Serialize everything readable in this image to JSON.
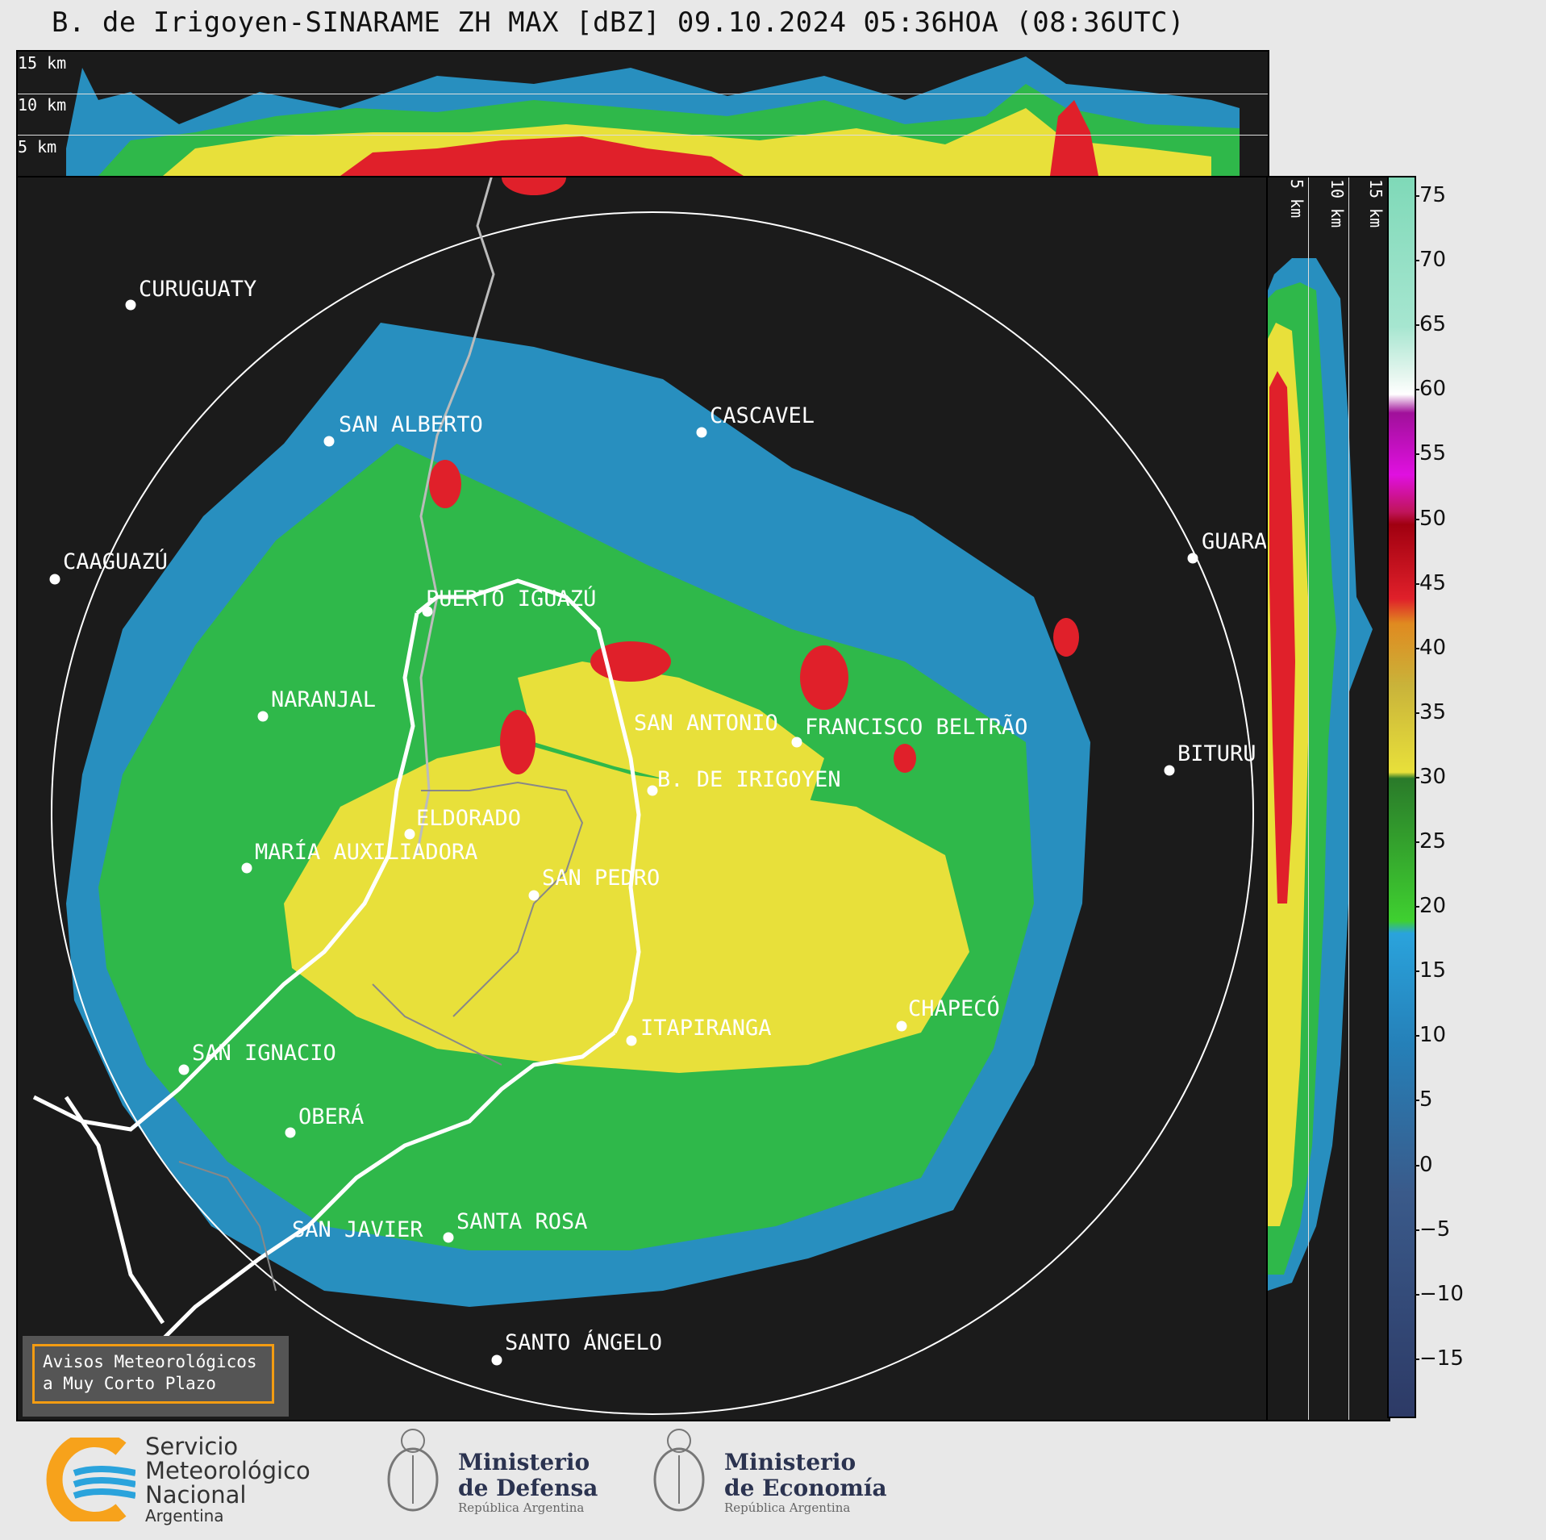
{
  "title": "B. de Irigoyen-SINARAME ZH MAX [dBZ] 09.10.2024 05:36HOA (08:36UTC)",
  "top_panel": {
    "altitudes": [
      "15 km",
      "10 km",
      "5 km"
    ]
  },
  "side_panel": {
    "altitudes": [
      "5 km",
      "10 km",
      "15 km"
    ]
  },
  "colorbar": {
    "ticks": [
      "75",
      "70",
      "65",
      "60",
      "55",
      "50",
      "45",
      "40",
      "35",
      "30",
      "25",
      "20",
      "15",
      "10",
      "5",
      "0",
      "−5",
      "−10",
      "−15"
    ]
  },
  "cities": [
    {
      "name": "CURUGUATY"
    },
    {
      "name": "SAN ALBERTO"
    },
    {
      "name": "CASCAVEL"
    },
    {
      "name": "CAAGUAZÚ"
    },
    {
      "name": "GUARA"
    },
    {
      "name": "PUERTO IGUAZÚ"
    },
    {
      "name": "NARANJAL"
    },
    {
      "name": "SAN ANTONIO"
    },
    {
      "name": "FRANCISCO BELTRÃO"
    },
    {
      "name": "BITURU"
    },
    {
      "name": "B. DE IRIGOYEN"
    },
    {
      "name": "ELDORADO"
    },
    {
      "name": "MARÍA AUXILIADORA"
    },
    {
      "name": "SAN PEDRO"
    },
    {
      "name": "ITAPIRANGA"
    },
    {
      "name": "CHAPECÓ"
    },
    {
      "name": "SAN IGNACIO"
    },
    {
      "name": "OBERÁ"
    },
    {
      "name": "SAN JAVIER"
    },
    {
      "name": "SANTA ROSA"
    },
    {
      "name": "SANTO ÁNGELO"
    }
  ],
  "warning": {
    "line1": "Avisos Meteorológicos",
    "line2": "a Muy Corto Plazo"
  },
  "footer": {
    "smn": {
      "line1": "Servicio",
      "line2": "Meteorológico",
      "line3": "Nacional",
      "line4": "Argentina"
    },
    "defensa": {
      "line1": "Ministerio",
      "line2": "de Defensa",
      "line3": "República Argentina"
    },
    "economia": {
      "line1": "Ministerio",
      "line2": "de Economía",
      "line3": "República Argentina"
    }
  },
  "colors": {
    "background": "#1b1b1b",
    "page": "#e8e8e8",
    "warning_border": "#f39c12",
    "smn_orange": "#f7a21b",
    "smn_blue": "#2aa3dc"
  }
}
